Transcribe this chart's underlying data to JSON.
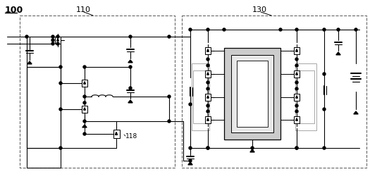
{
  "label_100": "100",
  "label_110": "110",
  "label_118": "118",
  "label_130": "130",
  "bg_color": "#ffffff",
  "lc": "#000000",
  "dash_color": "#666666",
  "gray_fill": "#cccccc",
  "white_fill": "#ffffff",
  "figw": 5.25,
  "figh": 2.54,
  "dpi": 100
}
